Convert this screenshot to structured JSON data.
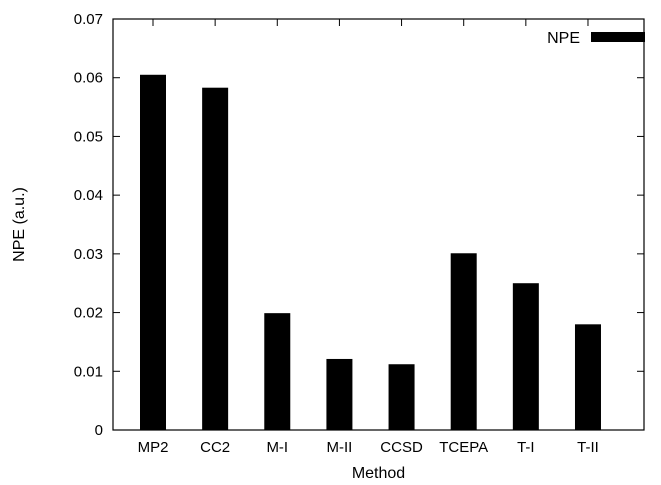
{
  "chart_data": {
    "type": "bar",
    "title": "",
    "xlabel": "Method",
    "ylabel": "NPE (a.u.)",
    "ylim": [
      0,
      0.07
    ],
    "yticks": [
      "0",
      "0.01",
      "0.02",
      "0.03",
      "0.04",
      "0.05",
      "0.06",
      "0.07"
    ],
    "categories": [
      "MP2",
      "CC2",
      "M-I",
      "M-II",
      "CCSD",
      "TCEPA",
      "T-I",
      "T-II"
    ],
    "series": [
      {
        "name": "NPE",
        "values": [
          0.0605,
          0.0583,
          0.0199,
          0.0121,
          0.0112,
          0.0301,
          0.025,
          0.018
        ]
      }
    ],
    "legend_position": "top-right",
    "grid": false,
    "bar_color": "#000000"
  }
}
